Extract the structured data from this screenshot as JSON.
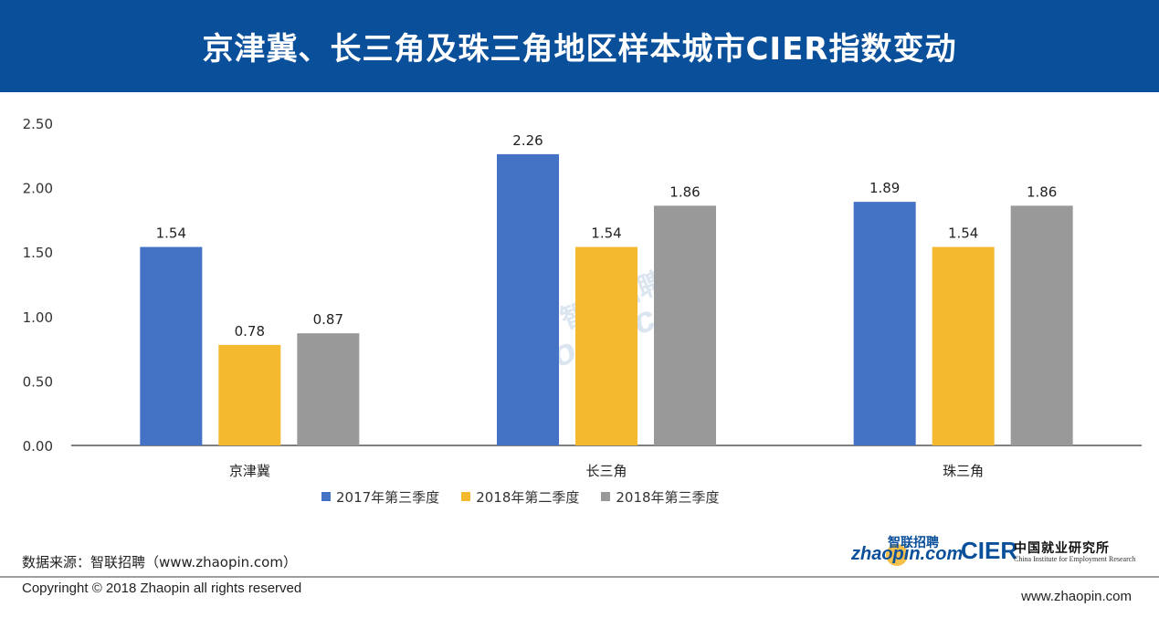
{
  "header": {
    "title": "京津冀、长三角及珠三角地区样本城市CIER指数变动",
    "background": "#0a4f9a"
  },
  "chart_data": {
    "type": "bar",
    "categories": [
      "京津冀",
      "长三角",
      "珠三角"
    ],
    "series": [
      {
        "name": "2017年第三季度",
        "color": "#4472c4",
        "values": [
          1.54,
          2.26,
          1.89
        ]
      },
      {
        "name": "2018年第二季度",
        "color": "#f4b92f",
        "values": [
          0.78,
          1.54,
          1.54
        ]
      },
      {
        "name": "2018年第三季度",
        "color": "#999999",
        "values": [
          0.87,
          1.86,
          1.86
        ]
      }
    ],
    "ylim": [
      0,
      2.5
    ],
    "yticks": [
      "0.00",
      "0.50",
      "1.00",
      "1.50",
      "2.00",
      "2.50"
    ],
    "data_labels": [
      [
        "1.54",
        "0.78",
        "0.87"
      ],
      [
        "2.26",
        "1.54",
        "1.86"
      ],
      [
        "1.89",
        "1.54",
        "1.86"
      ]
    ],
    "grid": false,
    "legend": "bottom"
  },
  "watermark": {
    "cn": "智联招聘",
    "en": "zhaopin.com"
  },
  "footer": {
    "source": "数据来源：智联招聘（www.zhaopin.com）",
    "copyright": "Copyringht © 2018 Zhaopin all rights reserved",
    "site": "www.zhaopin.com"
  },
  "logos": {
    "zhaopin_cn": "智联招聘",
    "zhaopin_en": "zhaopin.com",
    "cier": "CIER",
    "cier_cn": "中国就业研究所",
    "cier_en": "China Institute for Employment Research"
  }
}
